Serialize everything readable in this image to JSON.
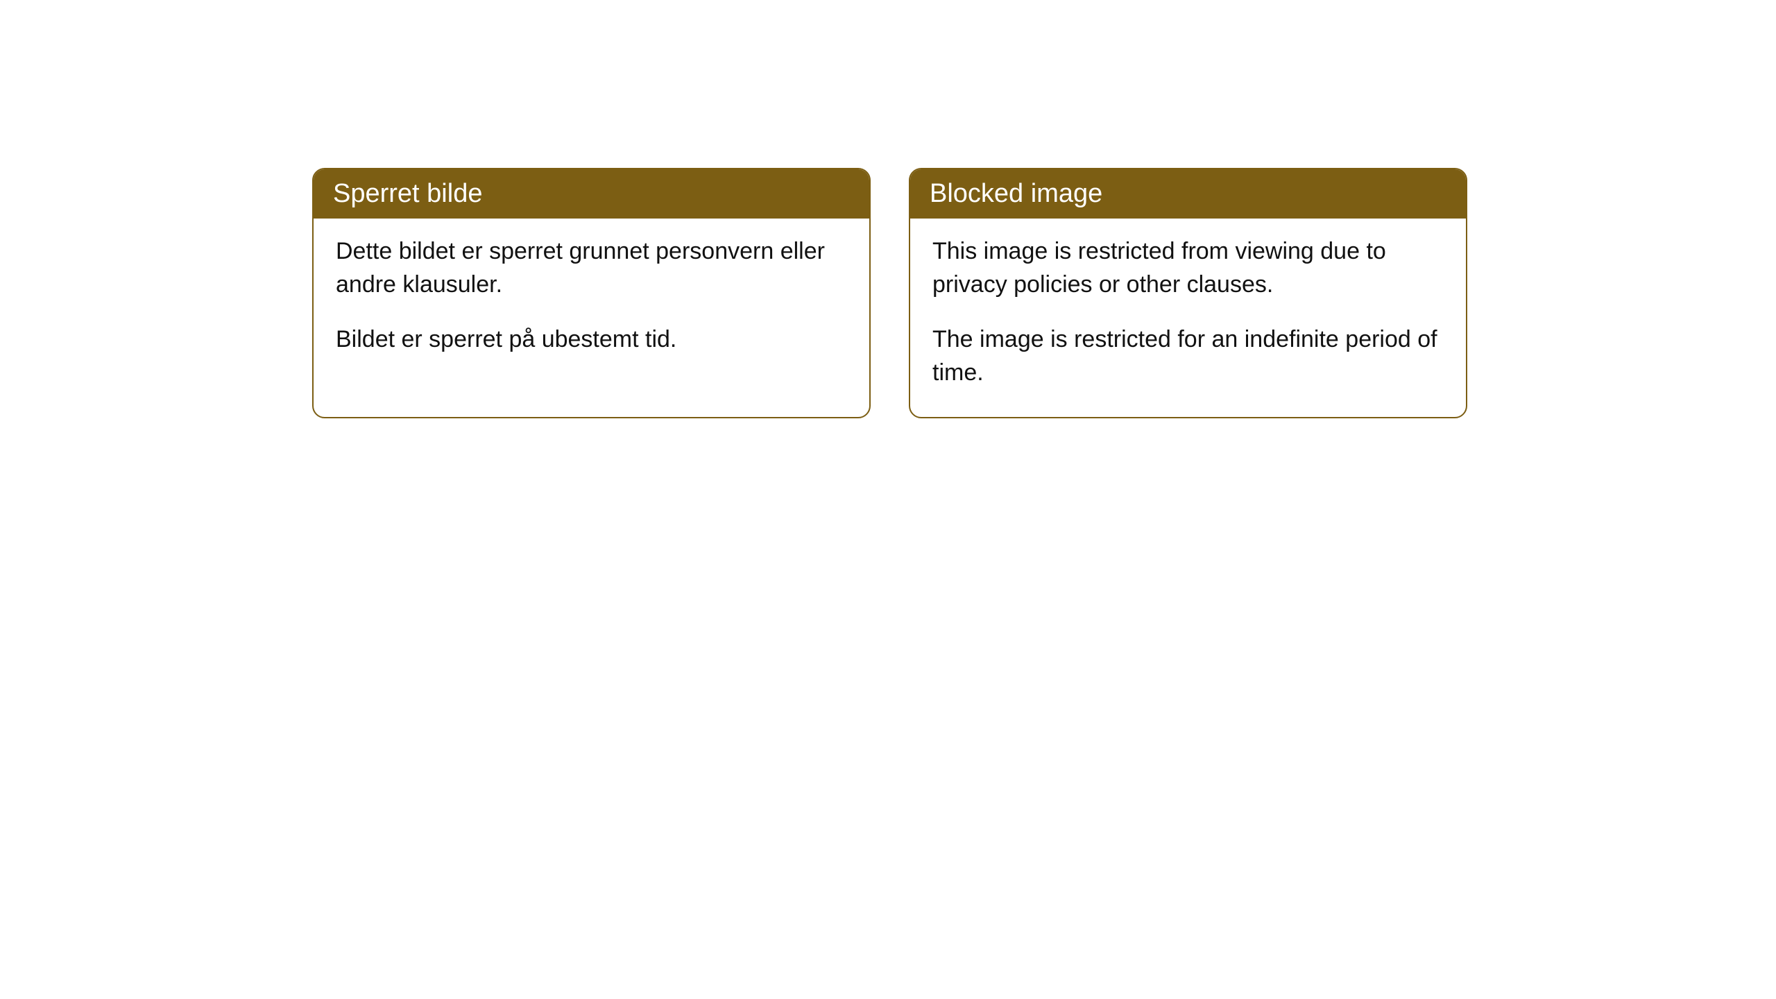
{
  "cards": [
    {
      "title": "Sperret bilde",
      "paragraph1": "Dette bildet er sperret grunnet personvern eller andre klausuler.",
      "paragraph2": "Bildet er sperret på ubestemt tid."
    },
    {
      "title": "Blocked image",
      "paragraph1": "This image is restricted from viewing due to privacy policies or other clauses.",
      "paragraph2": "The image is restricted for an indefinite period of time."
    }
  ],
  "styling": {
    "header_bg_color": "#7c5e13",
    "header_text_color": "#ffffff",
    "border_color": "#7c5e13",
    "body_bg_color": "#ffffff",
    "body_text_color": "#111111",
    "border_radius": 18,
    "header_fontsize": 38,
    "body_fontsize": 34
  }
}
